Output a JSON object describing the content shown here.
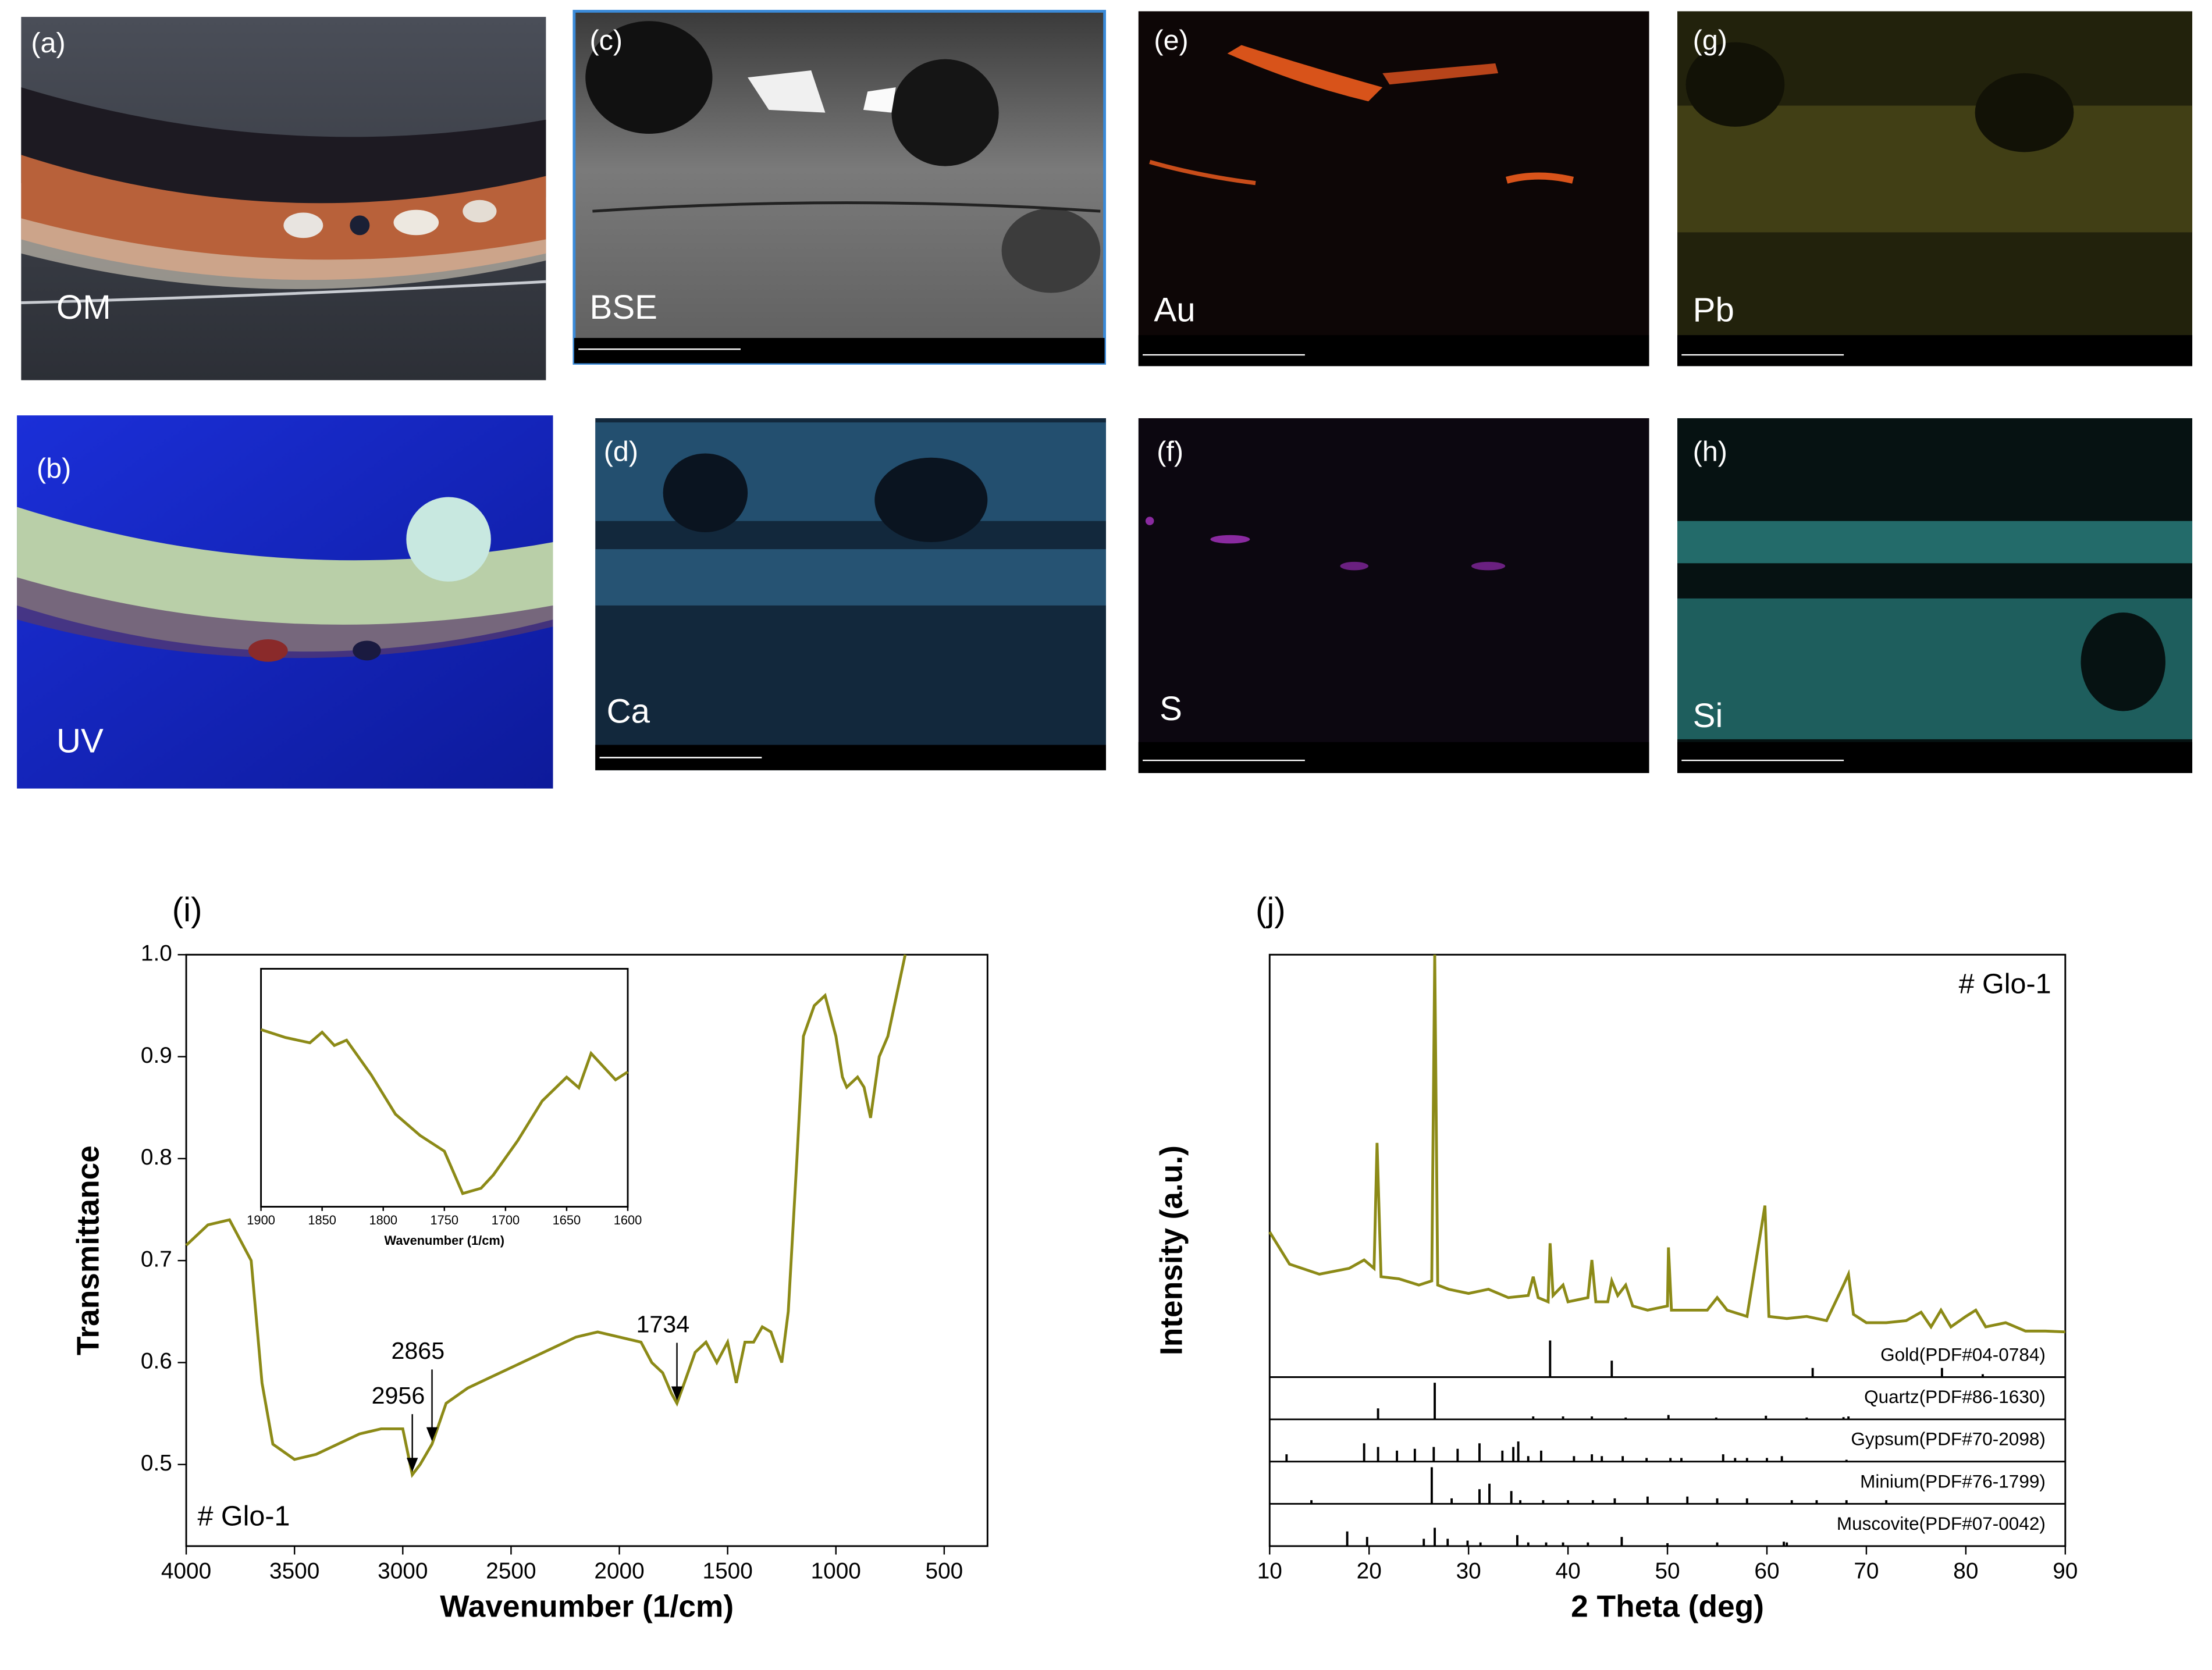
{
  "panels": [
    {
      "label": "(a)",
      "caption": "OM"
    },
    {
      "label": "(b)",
      "caption": "UV"
    },
    {
      "label": "(c)",
      "caption": "BSE"
    },
    {
      "label": "(d)",
      "caption": "Ca"
    },
    {
      "label": "(e)",
      "caption": "Au"
    },
    {
      "label": "(f)",
      "caption": "S"
    },
    {
      "label": "(g)",
      "caption": "Pb"
    },
    {
      "label": "(h)",
      "caption": "Si"
    }
  ],
  "chart_data": [
    {
      "type": "line",
      "title": "(i)",
      "xlabel": "Wavenumber (1/cm)",
      "ylabel": "Transmittance",
      "xlim": [
        4000,
        300
      ],
      "ylim": [
        0.42,
        1.0
      ],
      "xticks": [
        4000,
        3500,
        3000,
        2500,
        2000,
        1500,
        1000,
        500
      ],
      "yticks": [
        0.5,
        0.6,
        0.7,
        0.8,
        0.9,
        {
          "value": 1,
          "label": "1.0"
        }
      ],
      "legend": "lower left",
      "peak_labels": [
        2956,
        2865,
        1734
      ],
      "series": [
        {
          "name": "# Glo-1",
          "color": "#8c8a17",
          "x": [
            4000,
            3900,
            3800,
            3750,
            3700,
            3650,
            3600,
            3500,
            3400,
            3300,
            3200,
            3100,
            3000,
            2956,
            2920,
            2865,
            2800,
            2700,
            2600,
            2500,
            2400,
            2300,
            2200,
            2100,
            2000,
            1900,
            1850,
            1800,
            1760,
            1734,
            1700,
            1650,
            1600,
            1550,
            1500,
            1460,
            1420,
            1380,
            1340,
            1300,
            1250,
            1220,
            1180,
            1150,
            1100,
            1050,
            1000,
            970,
            950,
            900,
            870,
            840,
            800,
            760,
            720,
            680
          ],
          "values": [
            0.715,
            0.735,
            0.74,
            0.72,
            0.7,
            0.58,
            0.52,
            0.505,
            0.51,
            0.52,
            0.53,
            0.535,
            0.535,
            0.49,
            0.5,
            0.52,
            0.56,
            0.575,
            0.585,
            0.595,
            0.605,
            0.615,
            0.625,
            0.63,
            0.625,
            0.62,
            0.6,
            0.59,
            0.57,
            0.56,
            0.58,
            0.61,
            0.62,
            0.6,
            0.62,
            0.58,
            0.62,
            0.62,
            0.635,
            0.63,
            0.6,
            0.65,
            0.8,
            0.92,
            0.95,
            0.96,
            0.92,
            0.88,
            0.87,
            0.88,
            0.87,
            0.84,
            0.9,
            0.92,
            0.96,
            1.0
          ]
        }
      ]
    },
    {
      "type": "line",
      "xlabel": "Wavenumber (1/cm)",
      "xlim": [
        1900,
        1600
      ],
      "ylim": [
        0.545,
        0.635
      ],
      "xticks": [
        1900,
        1850,
        1800,
        1750,
        1700,
        1650,
        1600
      ],
      "series": [
        {
          "color": "#8c8a17",
          "x": [
            1900,
            1880,
            1860,
            1850,
            1840,
            1830,
            1810,
            1790,
            1770,
            1750,
            1735,
            1720,
            1710,
            1690,
            1670,
            1650,
            1640,
            1630,
            1620,
            1610,
            1600
          ],
          "values": [
            0.612,
            0.609,
            0.607,
            0.611,
            0.606,
            0.608,
            0.595,
            0.58,
            0.572,
            0.566,
            0.55,
            0.552,
            0.557,
            0.57,
            0.585,
            0.594,
            0.59,
            0.603,
            0.598,
            0.593,
            0.596
          ]
        }
      ]
    },
    {
      "type": "xrd",
      "title": "(j)",
      "xlabel": "2 Theta (deg)",
      "ylabel": "Intensity (a.u.)",
      "xlim": [
        10,
        90
      ],
      "ylim": [
        0,
        100
      ],
      "xticks": [
        10,
        20,
        30,
        40,
        50,
        60,
        70,
        80,
        90
      ],
      "legend": "upper right",
      "series": [
        {
          "name": "# Glo-1",
          "color": "#8c8a17",
          "x": [
            10,
            12,
            15,
            18,
            19.5,
            20.5,
            20.8,
            21.2,
            23,
            25,
            26.3,
            26.6,
            26.9,
            28,
            30,
            32,
            34,
            36,
            36.5,
            37,
            38,
            38.2,
            38.5,
            39.5,
            40,
            42,
            42.4,
            42.8,
            44,
            44.4,
            45,
            45.8,
            46.5,
            48,
            50,
            50.1,
            50.4,
            54,
            55,
            56,
            58,
            59.8,
            60.2,
            62,
            64,
            66,
            67.7,
            68.2,
            68.7,
            70,
            72,
            74,
            75.5,
            76.5,
            77.5,
            78.5,
            80,
            81,
            82,
            84,
            86,
            88,
            90
          ],
          "values": [
            33.7,
            26,
            23.6,
            25,
            27,
            25,
            55,
            23,
            22.5,
            21,
            22,
            100,
            21,
            20,
            19,
            20,
            18,
            18.5,
            23,
            18,
            17,
            31,
            18.5,
            21,
            17,
            18,
            27,
            17,
            17,
            22,
            18.5,
            21,
            16,
            15,
            16,
            30,
            15,
            15,
            18,
            15,
            13.5,
            40,
            13.5,
            13,
            13.5,
            12.5,
            21,
            23.6,
            14,
            12,
            12,
            12.5,
            14.5,
            11,
            15,
            11,
            13.5,
            15,
            11,
            12,
            10,
            10,
            9.8
          ]
        }
      ],
      "references": [
        {
          "name": "Gold(PDF#04-0784)",
          "x": [
            38.2,
            44.4,
            64.6,
            77.6,
            81.7
          ],
          "values": [
            100,
            45,
            25,
            25,
            8
          ]
        },
        {
          "name": "Quartz(PDF#86-1630)",
          "x": [
            20.9,
            26.6,
            36.5,
            39.5,
            42.4,
            45.8,
            50.1,
            54.9,
            59.9,
            64,
            67.7,
            68.2
          ],
          "values": [
            30,
            100,
            8,
            8,
            8,
            5,
            12,
            5,
            10,
            5,
            6,
            8
          ]
        },
        {
          "name": "Gypsum(PDF#70-2098)",
          "x": [
            11.7,
            19.5,
            20.9,
            22.8,
            24.6,
            26.5,
            28.9,
            31.1,
            33.4,
            34.5,
            35,
            36,
            37.3,
            40.6,
            42.4,
            43.4,
            45.5,
            47.9,
            50.3,
            51.4,
            55.6,
            56.8,
            58,
            60,
            61.5,
            68
          ],
          "values": [
            20,
            50,
            40,
            30,
            35,
            40,
            35,
            50,
            30,
            40,
            55,
            15,
            30,
            15,
            20,
            15,
            15,
            10,
            10,
            10,
            20,
            10,
            10,
            10,
            15,
            5
          ]
        },
        {
          "name": "Minium(PDF#76-1799)",
          "x": [
            14.2,
            26.3,
            28.3,
            31.1,
            32.1,
            34.3,
            35.2,
            37.5,
            40,
            42.5,
            44.7,
            48,
            52,
            55,
            58,
            62.5,
            65,
            68,
            72
          ],
          "values": [
            10,
            100,
            15,
            40,
            55,
            35,
            10,
            10,
            10,
            10,
            15,
            20,
            20,
            15,
            15,
            10,
            10,
            10,
            10
          ]
        },
        {
          "name": "Muscovite(PDF#07-0042)",
          "x": [
            17.8,
            19.8,
            25.5,
            26.6,
            27.9,
            29.9,
            31.2,
            34.9,
            36,
            37.8,
            39.5,
            42,
            45.4,
            50,
            55,
            61.7,
            62
          ],
          "values": [
            40,
            25,
            20,
            50,
            20,
            15,
            10,
            30,
            10,
            10,
            10,
            10,
            25,
            8,
            10,
            12,
            10
          ]
        }
      ]
    }
  ]
}
